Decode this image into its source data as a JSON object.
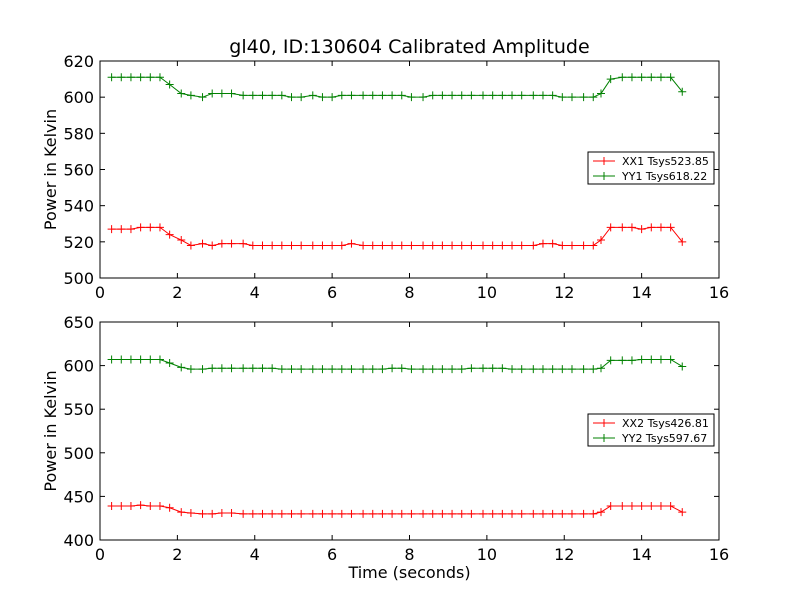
{
  "figure": {
    "background": "#ffffff"
  },
  "chart_data": [
    {
      "type": "line",
      "title": "gl40, ID:130604 Calibrated Amplitude",
      "xlabel": "",
      "ylabel": "Power in Kelvin",
      "xlim": [
        0,
        16
      ],
      "ylim": [
        500,
        620
      ],
      "xticks": [
        0,
        2,
        4,
        6,
        8,
        10,
        12,
        14,
        16
      ],
      "yticks": [
        500,
        520,
        540,
        560,
        580,
        600,
        620
      ],
      "grid": false,
      "legend_position": "center-right",
      "marker": "+",
      "x": [
        0.3,
        0.55,
        0.8,
        1.05,
        1.3,
        1.55,
        1.8,
        2.1,
        2.35,
        2.65,
        2.9,
        3.15,
        3.4,
        3.7,
        3.95,
        4.2,
        4.45,
        4.7,
        4.95,
        5.2,
        5.5,
        5.75,
        6.0,
        6.25,
        6.5,
        6.8,
        7.05,
        7.3,
        7.55,
        7.8,
        8.05,
        8.35,
        8.6,
        8.85,
        9.1,
        9.35,
        9.6,
        9.9,
        10.15,
        10.4,
        10.65,
        10.9,
        11.2,
        11.45,
        11.7,
        11.95,
        12.2,
        12.5,
        12.75,
        12.95,
        13.2,
        13.5,
        13.75,
        14.0,
        14.25,
        14.5,
        14.75,
        15.05
      ],
      "series": [
        {
          "name": "XX1 Tsys523.85",
          "color": "#ff0000",
          "values": [
            527,
            527,
            527,
            528,
            528,
            528,
            524,
            521,
            518,
            519,
            518,
            519,
            519,
            519,
            518,
            518,
            518,
            518,
            518,
            518,
            518,
            518,
            518,
            518,
            519,
            518,
            518,
            518,
            518,
            518,
            518,
            518,
            518,
            518,
            518,
            518,
            518,
            518,
            518,
            518,
            518,
            518,
            518,
            519,
            519,
            518,
            518,
            518,
            518,
            521,
            528,
            528,
            528,
            527,
            528,
            528,
            528,
            520
          ]
        },
        {
          "name": "YY1 Tsys618.22",
          "color": "#008000",
          "values": [
            611,
            611,
            611,
            611,
            611,
            611,
            607,
            602,
            601,
            600,
            602,
            602,
            602,
            601,
            601,
            601,
            601,
            601,
            600,
            600,
            601,
            600,
            600,
            601,
            601,
            601,
            601,
            601,
            601,
            601,
            600,
            600,
            601,
            601,
            601,
            601,
            601,
            601,
            601,
            601,
            601,
            601,
            601,
            601,
            601,
            600,
            600,
            600,
            600,
            602,
            610,
            611,
            611,
            611,
            611,
            611,
            611,
            603
          ]
        }
      ]
    },
    {
      "type": "line",
      "title": "",
      "xlabel": "Time (seconds)",
      "ylabel": "Power in Kelvin",
      "xlim": [
        0,
        16
      ],
      "ylim": [
        400,
        650
      ],
      "xticks": [
        0,
        2,
        4,
        6,
        8,
        10,
        12,
        14,
        16
      ],
      "yticks": [
        400,
        450,
        500,
        550,
        600,
        650
      ],
      "grid": false,
      "legend_position": "center-right",
      "marker": "+",
      "x": [
        0.3,
        0.55,
        0.8,
        1.05,
        1.3,
        1.55,
        1.8,
        2.1,
        2.35,
        2.65,
        2.9,
        3.15,
        3.4,
        3.7,
        3.95,
        4.2,
        4.45,
        4.7,
        4.95,
        5.2,
        5.5,
        5.75,
        6.0,
        6.25,
        6.5,
        6.8,
        7.05,
        7.3,
        7.55,
        7.8,
        8.05,
        8.35,
        8.6,
        8.85,
        9.1,
        9.35,
        9.6,
        9.9,
        10.15,
        10.4,
        10.65,
        10.9,
        11.2,
        11.45,
        11.7,
        11.95,
        12.2,
        12.5,
        12.75,
        12.95,
        13.2,
        13.5,
        13.75,
        14.0,
        14.25,
        14.5,
        14.75,
        15.05
      ],
      "series": [
        {
          "name": "XX2 Tsys426.81",
          "color": "#ff0000",
          "values": [
            439,
            439,
            439,
            440,
            439,
            439,
            437,
            432,
            431,
            430,
            430,
            431,
            431,
            430,
            430,
            430,
            430,
            430,
            430,
            430,
            430,
            430,
            430,
            430,
            430,
            430,
            430,
            430,
            430,
            430,
            430,
            430,
            430,
            430,
            430,
            430,
            430,
            430,
            430,
            430,
            430,
            430,
            430,
            430,
            430,
            430,
            430,
            430,
            430,
            432,
            439,
            439,
            439,
            439,
            439,
            439,
            439,
            432
          ]
        },
        {
          "name": "YY2 Tsys597.67",
          "color": "#008000",
          "values": [
            607,
            607,
            607,
            607,
            607,
            607,
            603,
            598,
            596,
            596,
            597,
            597,
            597,
            597,
            597,
            597,
            597,
            596,
            596,
            596,
            596,
            596,
            596,
            596,
            596,
            596,
            596,
            596,
            597,
            597,
            596,
            596,
            596,
            596,
            596,
            596,
            597,
            597,
            597,
            597,
            596,
            596,
            596,
            596,
            596,
            596,
            596,
            596,
            596,
            597,
            606,
            606,
            606,
            607,
            607,
            607,
            607,
            599
          ]
        }
      ]
    }
  ]
}
